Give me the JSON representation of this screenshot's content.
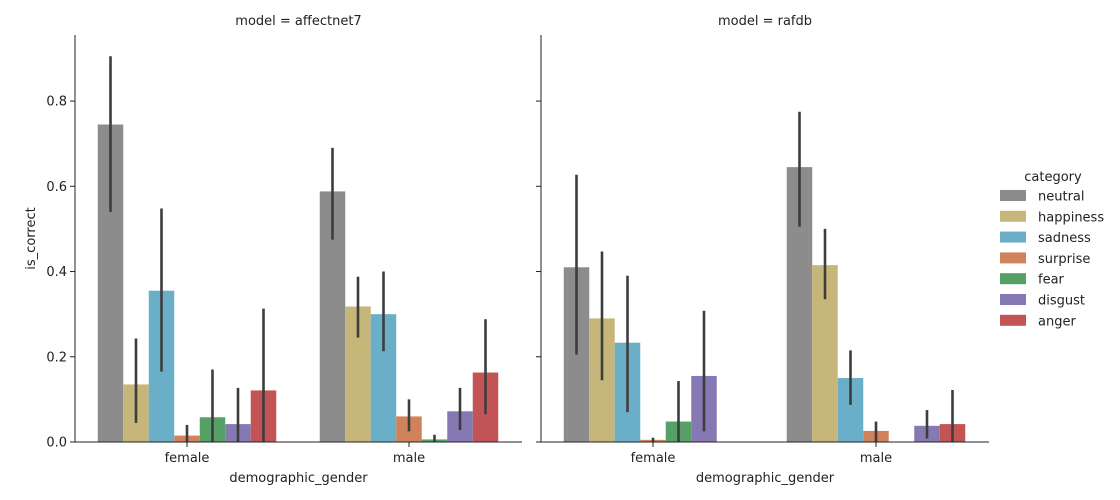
{
  "chart_data": {
    "type": "bar",
    "xlabel": "demographic_gender",
    "ylabel": "is_correct",
    "ylim": [
      0,
      0.955
    ],
    "yticks": [
      "0.0",
      "0.2",
      "0.4",
      "0.6",
      "0.8"
    ],
    "ytick_values": [
      0.0,
      0.2,
      0.4,
      0.6,
      0.8
    ],
    "categories": [
      "female",
      "male"
    ],
    "legend": {
      "title": "category",
      "placement": "right",
      "entries": [
        "neutral",
        "happiness",
        "sadness",
        "surprise",
        "fear",
        "disgust",
        "anger"
      ]
    },
    "colors": {
      "neutral": "#8c8c8c",
      "happiness": "#c7b67a",
      "sadness": "#6aaec7",
      "surprise": "#d0835a",
      "fear": "#55a064",
      "disgust": "#8678b3",
      "anger": "#c25456",
      "errorbar": "#3d3d3d"
    },
    "panels": [
      {
        "title": "model = affectnet7",
        "series": [
          {
            "name": "neutral",
            "values": [
              0.745,
              0.588
            ],
            "err_low": [
              0.54,
              0.475
            ],
            "err_high": [
              0.905,
              0.69
            ]
          },
          {
            "name": "happiness",
            "values": [
              0.135,
              0.318
            ],
            "err_low": [
              0.045,
              0.245
            ],
            "err_high": [
              0.243,
              0.388
            ]
          },
          {
            "name": "sadness",
            "values": [
              0.355,
              0.3
            ],
            "err_low": [
              0.165,
              0.213
            ],
            "err_high": [
              0.548,
              0.4
            ]
          },
          {
            "name": "surprise",
            "values": [
              0.015,
              0.06
            ],
            "err_low": [
              0.0,
              0.025
            ],
            "err_high": [
              0.04,
              0.1
            ]
          },
          {
            "name": "fear",
            "values": [
              0.058,
              0.006
            ],
            "err_low": [
              0.0,
              0.0
            ],
            "err_high": [
              0.17,
              0.017
            ]
          },
          {
            "name": "disgust",
            "values": [
              0.042,
              0.072
            ],
            "err_low": [
              0.0,
              0.028
            ],
            "err_high": [
              0.127,
              0.127
            ]
          },
          {
            "name": "anger",
            "values": [
              0.121,
              0.163
            ],
            "err_low": [
              0.0,
              0.065
            ],
            "err_high": [
              0.313,
              0.288
            ]
          }
        ]
      },
      {
        "title": "model = rafdb",
        "series": [
          {
            "name": "neutral",
            "values": [
              0.41,
              0.645
            ],
            "err_low": [
              0.205,
              0.505
            ],
            "err_high": [
              0.627,
              0.775
            ]
          },
          {
            "name": "happiness",
            "values": [
              0.29,
              0.415
            ],
            "err_low": [
              0.145,
              0.335
            ],
            "err_high": [
              0.447,
              0.5
            ]
          },
          {
            "name": "sadness",
            "values": [
              0.233,
              0.15
            ],
            "err_low": [
              0.07,
              0.087
            ],
            "err_high": [
              0.39,
              0.215
            ]
          },
          {
            "name": "surprise",
            "values": [
              0.005,
              0.026
            ],
            "err_low": [
              0.0,
              0.0
            ],
            "err_high": [
              0.01,
              0.048
            ]
          },
          {
            "name": "fear",
            "values": [
              0.048,
              0.0
            ],
            "err_low": [
              0.0,
              0.0
            ],
            "err_high": [
              0.143,
              0.0
            ]
          },
          {
            "name": "disgust",
            "values": [
              0.155,
              0.038
            ],
            "err_low": [
              0.025,
              0.008
            ],
            "err_high": [
              0.308,
              0.075
            ]
          },
          {
            "name": "anger",
            "values": [
              0.0,
              0.042
            ],
            "err_low": [
              0.0,
              0.0
            ],
            "err_high": [
              0.0,
              0.122
            ]
          }
        ]
      }
    ]
  }
}
